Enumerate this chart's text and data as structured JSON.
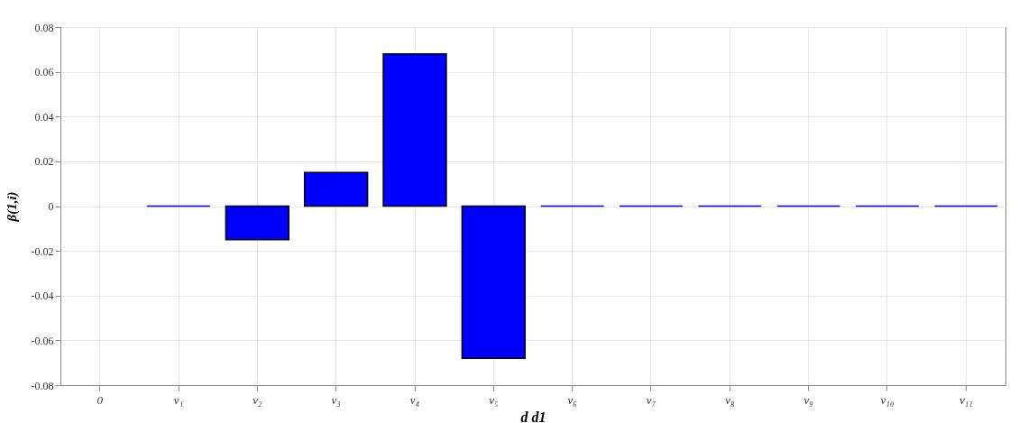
{
  "chart_data": {
    "type": "bar",
    "xlabel": "d d1",
    "ylabel": "β(1,i)",
    "categories": [
      "0",
      "v₁",
      "v₂",
      "v₃",
      "v₄",
      "v₅",
      "v₆",
      "v₇",
      "v₈",
      "v₉",
      "v₁₀",
      "v₁₁"
    ],
    "series": [
      {
        "color": "#0000ff",
        "values": [
          null,
          0,
          -0.015,
          0.015,
          0.068,
          -0.068,
          0,
          0,
          0,
          0,
          0,
          0
        ]
      }
    ],
    "ylim": [
      -0.08,
      0.08
    ],
    "yticks": [
      -0.08,
      -0.06,
      -0.04,
      -0.02,
      0,
      0.02,
      0.04,
      0.06,
      0.08
    ],
    "grid": true
  }
}
